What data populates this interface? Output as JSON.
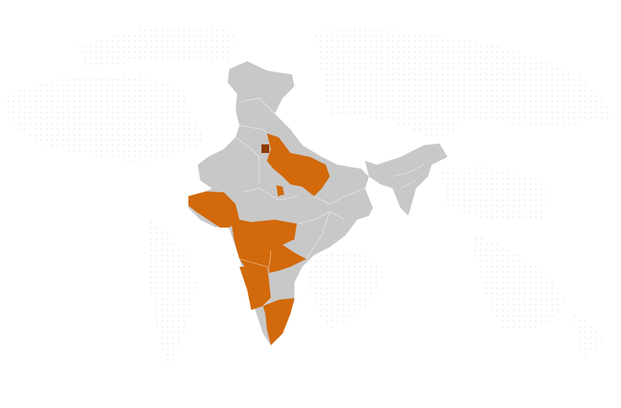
{
  "map": {
    "base_color": "#c8c8c8",
    "highlight_color": "#d2690a",
    "marker_color": "#8f3c06",
    "background_dot_color": "#ececec"
  }
}
